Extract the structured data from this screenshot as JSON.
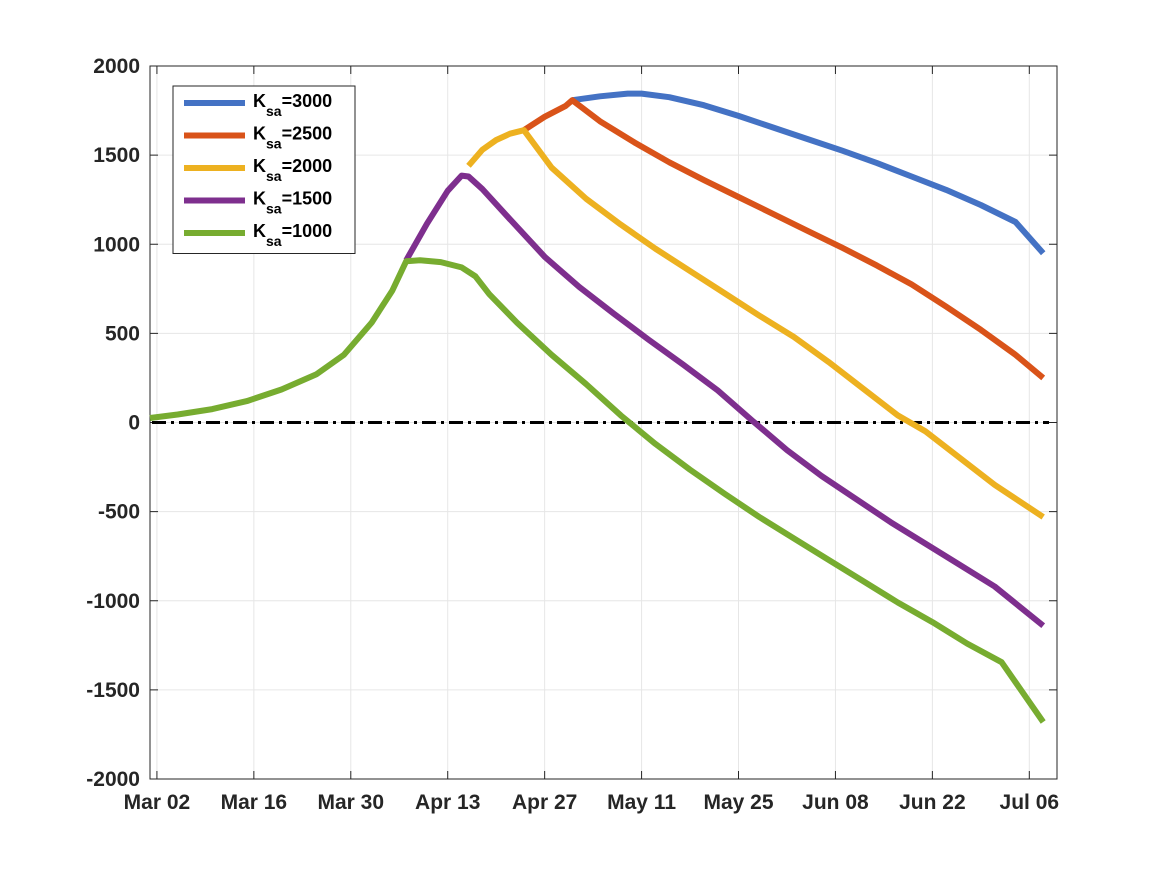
{
  "chart_data": {
    "type": "line",
    "title": "",
    "xlabel": "",
    "ylabel": "",
    "x_ticks": [
      "Mar 02",
      "Mar 16",
      "Mar 30",
      "Apr 13",
      "Apr 27",
      "May 11",
      "May 25",
      "Jun 08",
      "Jun 22",
      "Jul 06"
    ],
    "y_ticks": [
      "-2000",
      "-1500",
      "-1000",
      "-500",
      "0",
      "500",
      "1000",
      "1500",
      "2000"
    ],
    "xlim": [
      "2020-03-01",
      "2020-07-10"
    ],
    "ylim": [
      -2000,
      2000
    ],
    "grid": true,
    "legend_position": "top-left",
    "series": [
      {
        "name": "K_sa=3000",
        "legend_main": "K",
        "legend_sub": "sa",
        "legend_tail": "=3000",
        "color": "#4472C4",
        "x": [
          "2020-05-01",
          "2020-05-05",
          "2020-05-09",
          "2020-05-11",
          "2020-05-15",
          "2020-05-20",
          "2020-05-25",
          "2020-05-30",
          "2020-06-04",
          "2020-06-09",
          "2020-06-14",
          "2020-06-19",
          "2020-06-24",
          "2020-06-29",
          "2020-07-04",
          "2020-07-08"
        ],
        "y": [
          1808,
          1830,
          1845,
          1845,
          1825,
          1780,
          1720,
          1655,
          1590,
          1525,
          1455,
          1380,
          1305,
          1220,
          1125,
          950
        ]
      },
      {
        "name": "K_sa=2500",
        "legend_main": "K",
        "legend_sub": "sa",
        "legend_tail": "=2500",
        "color": "#D95319",
        "x": [
          "2020-04-24",
          "2020-04-27",
          "2020-04-30",
          "2020-05-01",
          "2020-05-05",
          "2020-05-10",
          "2020-05-15",
          "2020-05-20",
          "2020-05-25",
          "2020-05-30",
          "2020-06-04",
          "2020-06-09",
          "2020-06-14",
          "2020-06-19",
          "2020-06-24",
          "2020-06-29",
          "2020-07-04",
          "2020-07-08"
        ],
        "y": [
          1640,
          1715,
          1775,
          1808,
          1690,
          1570,
          1460,
          1360,
          1265,
          1170,
          1075,
          980,
          880,
          775,
          650,
          520,
          380,
          250
        ]
      },
      {
        "name": "K_sa=2000",
        "legend_main": "K",
        "legend_sub": "sa",
        "legend_tail": "=2000",
        "color": "#EDB120",
        "x": [
          "2020-04-16",
          "2020-04-18",
          "2020-04-20",
          "2020-04-22",
          "2020-04-24",
          "2020-04-28",
          "2020-05-03",
          "2020-05-08",
          "2020-05-13",
          "2020-05-18",
          "2020-05-23",
          "2020-05-28",
          "2020-06-02",
          "2020-06-07",
          "2020-06-12",
          "2020-06-17",
          "2020-06-21",
          "2020-06-26",
          "2020-07-01",
          "2020-07-08"
        ],
        "y": [
          1440,
          1530,
          1585,
          1620,
          1640,
          1430,
          1255,
          1110,
          975,
          850,
          725,
          600,
          480,
          340,
          190,
          40,
          -50,
          -200,
          -350,
          -530
        ]
      },
      {
        "name": "K_sa=1500",
        "legend_main": "K",
        "legend_sub": "sa",
        "legend_tail": "=1500",
        "color": "#7E2F8E",
        "x": [
          "2020-04-07",
          "2020-04-10",
          "2020-04-13",
          "2020-04-15",
          "2020-04-16",
          "2020-04-18",
          "2020-04-22",
          "2020-04-27",
          "2020-05-02",
          "2020-05-07",
          "2020-05-12",
          "2020-05-17",
          "2020-05-22",
          "2020-05-27",
          "2020-06-01",
          "2020-06-06",
          "2020-06-11",
          "2020-06-16",
          "2020-06-21",
          "2020-06-26",
          "2020-07-01",
          "2020-07-08"
        ],
        "y": [
          910,
          1115,
          1300,
          1385,
          1380,
          1310,
          1140,
          930,
          760,
          610,
          465,
          325,
          180,
          10,
          -155,
          -300,
          -430,
          -560,
          -680,
          -800,
          -920,
          -1140
        ]
      },
      {
        "name": "K_sa=1000",
        "legend_main": "K",
        "legend_sub": "sa",
        "legend_tail": "=1000",
        "color": "#77AC30",
        "x": [
          "2020-03-01",
          "2020-03-05",
          "2020-03-10",
          "2020-03-15",
          "2020-03-20",
          "2020-03-25",
          "2020-03-29",
          "2020-04-02",
          "2020-04-05",
          "2020-04-07",
          "2020-04-09",
          "2020-04-12",
          "2020-04-15",
          "2020-04-17",
          "2020-04-19",
          "2020-04-23",
          "2020-04-28",
          "2020-05-03",
          "2020-05-08",
          "2020-05-13",
          "2020-05-18",
          "2020-05-23",
          "2020-05-28",
          "2020-06-02",
          "2020-06-07",
          "2020-06-12",
          "2020-06-17",
          "2020-06-22",
          "2020-06-27",
          "2020-07-02",
          "2020-07-08"
        ],
        "y": [
          25,
          45,
          75,
          120,
          185,
          270,
          380,
          560,
          740,
          905,
          910,
          900,
          870,
          820,
          720,
          560,
          380,
          215,
          40,
          -120,
          -265,
          -400,
          -530,
          -650,
          -770,
          -890,
          -1010,
          -1120,
          -1240,
          -1345,
          -1680
        ]
      }
    ],
    "reference_line": {
      "y": 0,
      "style": "dash-dot",
      "color": "#000000"
    }
  }
}
